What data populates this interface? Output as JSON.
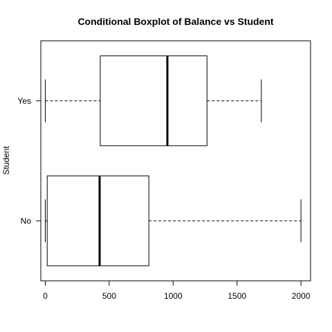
{
  "chart_data": {
    "type": "boxplot",
    "orientation": "horizontal",
    "title": "Conditional Boxplot of Balance vs Student",
    "xlabel": "",
    "ylabel": "Student",
    "xlim": [
      -35,
      2075
    ],
    "x_ticks": [
      0,
      500,
      1000,
      1500,
      2000
    ],
    "x_tick_labels": [
      "0",
      "500",
      "1000",
      "1500",
      "2000"
    ],
    "categories": [
      "No",
      "Yes"
    ],
    "boxes": [
      {
        "category": "No",
        "whisker_low": 0,
        "q1": 15,
        "median": 425,
        "q3": 810,
        "whisker_high": 2000
      },
      {
        "category": "Yes",
        "whisker_low": 0,
        "q1": 430,
        "median": 955,
        "q3": 1265,
        "whisker_high": 1690
      }
    ],
    "grid": false,
    "legend": "none"
  }
}
